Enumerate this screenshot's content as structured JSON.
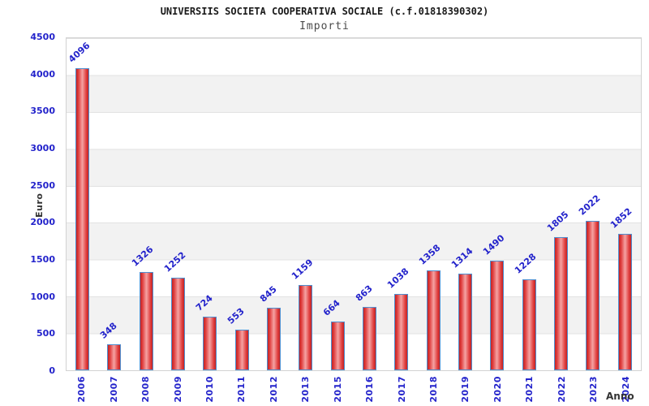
{
  "header": {
    "title": "UNIVERSIIS SOCIETA COOPERATIVA SOCIALE (c.f.01818390302)",
    "subtitle": "Importi"
  },
  "chart_data": {
    "type": "bar",
    "title": "UNIVERSIIS SOCIETA COOPERATIVA SOCIALE (c.f.01818390302)",
    "subtitle": "Importi",
    "xlabel": "Anno",
    "ylabel": "Euro",
    "ylim": [
      0,
      4500
    ],
    "ytick_step": 500,
    "yticks": [
      0,
      500,
      1000,
      1500,
      2000,
      2500,
      3000,
      3500,
      4000,
      4500
    ],
    "grid": "horizontal-bands-alternating",
    "legend": "none",
    "categories": [
      "2006",
      "2007",
      "2008",
      "2009",
      "2010",
      "2011",
      "2012",
      "2013",
      "2015",
      "2016",
      "2017",
      "2018",
      "2019",
      "2020",
      "2021",
      "2022",
      "2023",
      "2024"
    ],
    "values": [
      4096,
      348,
      1326,
      1252,
      724,
      553,
      845,
      1159,
      664,
      863,
      1038,
      1358,
      1314,
      1490,
      1228,
      1805,
      2022,
      1852
    ],
    "colors": {
      "accent": "#2323cb",
      "band": "#f2f2f2",
      "grid": "#e2e2e2",
      "plot-border": "#d2d2d2",
      "bar-border": "#4f8fd0",
      "bar-dark": "#c32222",
      "bar-mid": "#e04040",
      "bar-light": "#f5a3a3",
      "dark-text": "#333333"
    }
  }
}
